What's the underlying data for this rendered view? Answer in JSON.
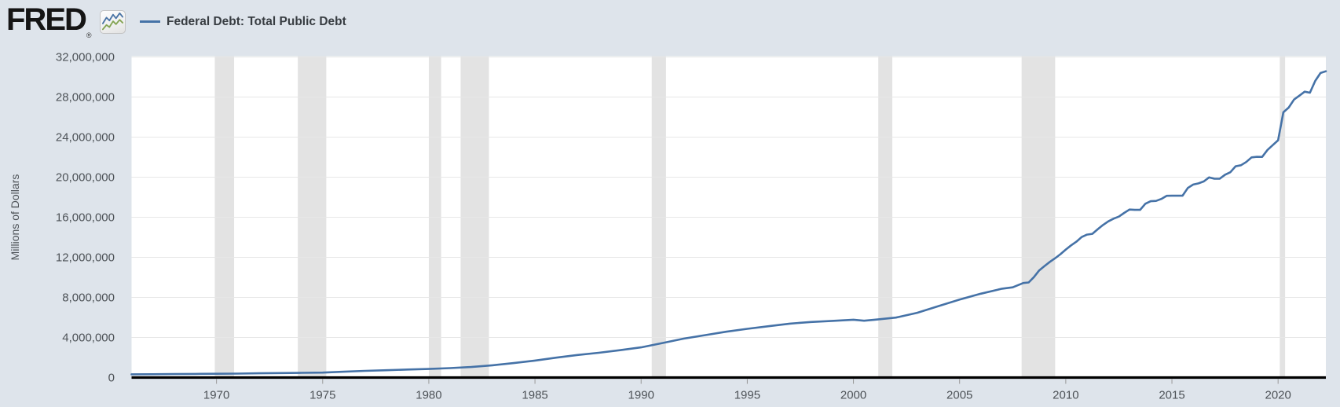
{
  "header": {
    "logo_text": "FRED",
    "logo_reg_mark": "®",
    "legend_label": "Federal Debt: Total Public Debt"
  },
  "colors": {
    "page_bg": "#dee4eb",
    "plot_bg": "#ffffff",
    "grid": "#e7e7e7",
    "recession_band": "#e3e3e3",
    "line": "#4572a7",
    "axis_line": "#000000",
    "tick_mark": "#999999",
    "tick_label": "#4d5257",
    "legend_text": "#383d42",
    "icon_line_blue": "#4a74a5",
    "icon_line_green": "#84a453"
  },
  "chart_data": {
    "type": "line",
    "title": "Federal Debt: Total Public Debt",
    "xlabel": "",
    "ylabel": "Millions of Dollars",
    "xlim": [
      1966,
      2022.25
    ],
    "ylim": [
      0,
      32000000
    ],
    "x_ticks": [
      1970,
      1975,
      1980,
      1985,
      1990,
      1995,
      2000,
      2005,
      2010,
      2015,
      2020
    ],
    "y_ticks": [
      0,
      4000000,
      8000000,
      12000000,
      16000000,
      20000000,
      24000000,
      28000000,
      32000000
    ],
    "grid": "horizontal-only",
    "legend_position": "top-left-header",
    "shaded_regions_meaning": "U.S. recessions",
    "recession_bands": [
      [
        1969.92,
        1970.83
      ],
      [
        1973.83,
        1975.17
      ],
      [
        1980.0,
        1980.58
      ],
      [
        1981.5,
        1982.83
      ],
      [
        1990.5,
        1991.17
      ],
      [
        2001.17,
        2001.83
      ],
      [
        2007.92,
        2009.5
      ],
      [
        2020.08,
        2020.33
      ]
    ],
    "series": [
      {
        "name": "Federal Debt: Total Public Debt",
        "units": "Millions of Dollars",
        "points": [
          [
            1966,
            320999
          ],
          [
            1967,
            330547
          ],
          [
            1968,
            345186
          ],
          [
            1969,
            362542
          ],
          [
            1970,
            372601
          ],
          [
            1971,
            390877
          ],
          [
            1972,
            427168
          ],
          [
            1973,
            450547
          ],
          [
            1974,
            471693
          ],
          [
            1975,
            497052
          ],
          [
            1976,
            582603
          ],
          [
            1977,
            662810
          ],
          [
            1978,
            729055
          ],
          [
            1979,
            798706
          ],
          [
            1980,
            852331
          ],
          [
            1981,
            941559
          ],
          [
            1982,
            1049152
          ],
          [
            1983,
            1222390
          ],
          [
            1984,
            1440615
          ],
          [
            1985,
            1697801
          ],
          [
            1986,
            1982907
          ],
          [
            1987,
            2252609
          ],
          [
            1988,
            2473633
          ],
          [
            1989,
            2727343
          ],
          [
            1990,
            3010028
          ],
          [
            1991,
            3441367
          ],
          [
            1992,
            3881286
          ],
          [
            1993,
            4230580
          ],
          [
            1994,
            4575869
          ],
          [
            1995,
            4864116
          ],
          [
            1996,
            5117786
          ],
          [
            1997,
            5380890
          ],
          [
            1998,
            5542425
          ],
          [
            1999,
            5651615
          ],
          [
            2000,
            5773392
          ],
          [
            2000.5,
            5674209
          ],
          [
            2001,
            5773740
          ],
          [
            2002,
            5984677
          ],
          [
            2003,
            6460776
          ],
          [
            2004,
            7131068
          ],
          [
            2005,
            7776939
          ],
          [
            2006,
            8371156
          ],
          [
            2007,
            8867741
          ],
          [
            2007.5,
            9007653
          ],
          [
            2008,
            9437593
          ],
          [
            2008.25,
            9492006
          ],
          [
            2008.5,
            10024725
          ],
          [
            2008.75,
            10699805
          ],
          [
            2009,
            11126941
          ],
          [
            2009.25,
            11545275
          ],
          [
            2009.5,
            11909829
          ],
          [
            2009.75,
            12311349
          ],
          [
            2010,
            12773123
          ],
          [
            2010.25,
            13191639
          ],
          [
            2010.5,
            13561623
          ],
          [
            2010.75,
            14025215
          ],
          [
            2011,
            14270115
          ],
          [
            2011.25,
            14343088
          ],
          [
            2011.5,
            14790340
          ],
          [
            2011.75,
            15222940
          ],
          [
            2012,
            15582078
          ],
          [
            2012.25,
            15855500
          ],
          [
            2012.5,
            16066241
          ],
          [
            2012.75,
            16432730
          ],
          [
            2013,
            16771378
          ],
          [
            2013.25,
            16738184
          ],
          [
            2013.5,
            16738650
          ],
          [
            2013.75,
            17351971
          ],
          [
            2014,
            17601227
          ],
          [
            2014.25,
            17632606
          ],
          [
            2014.5,
            17824071
          ],
          [
            2014.75,
            18141444
          ],
          [
            2015,
            18152056
          ],
          [
            2015.25,
            18151998
          ],
          [
            2015.5,
            18150618
          ],
          [
            2015.75,
            18922179
          ],
          [
            2016,
            19264939
          ],
          [
            2016.25,
            19381591
          ],
          [
            2016.5,
            19573445
          ],
          [
            2016.75,
            19976827
          ],
          [
            2017,
            19846420
          ],
          [
            2017.25,
            19844554
          ],
          [
            2017.5,
            20244900
          ],
          [
            2017.75,
            20492747
          ],
          [
            2018,
            21089643
          ],
          [
            2018.25,
            21195070
          ],
          [
            2018.5,
            21516058
          ],
          [
            2018.75,
            21974096
          ],
          [
            2019,
            22028236
          ],
          [
            2019.25,
            22023545
          ],
          [
            2019.5,
            22719402
          ],
          [
            2019.75,
            23201380
          ],
          [
            2020,
            23686966
          ],
          [
            2020.25,
            26477368
          ],
          [
            2020.5,
            26945391
          ],
          [
            2020.75,
            27747798
          ],
          [
            2021,
            28132570
          ],
          [
            2021.25,
            28529436
          ],
          [
            2021.5,
            28428919
          ],
          [
            2021.75,
            29617215
          ],
          [
            2022,
            30401297
          ],
          [
            2022.25,
            30568712
          ]
        ]
      }
    ]
  }
}
